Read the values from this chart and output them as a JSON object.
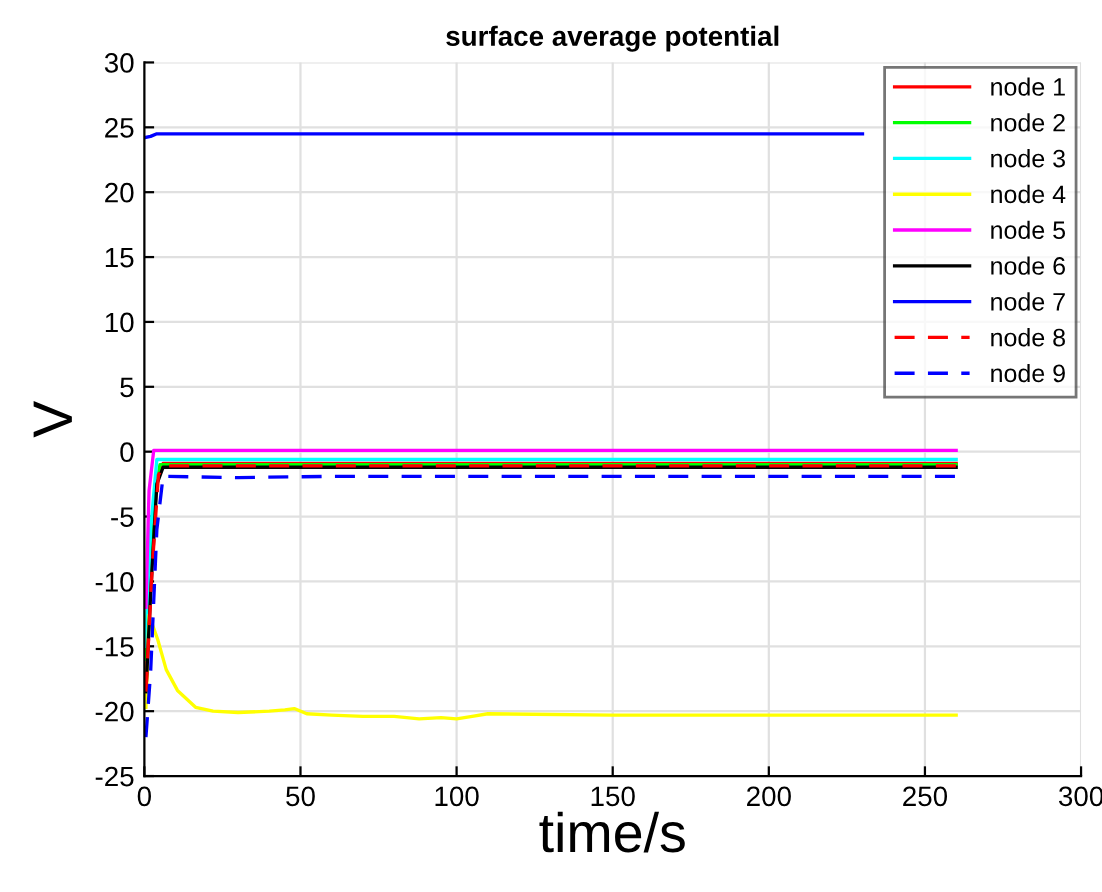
{
  "chart_data": {
    "type": "line",
    "title": "surface average potential",
    "xlabel": "time/s",
    "ylabel": "V",
    "xlim": [
      0,
      300
    ],
    "ylim": [
      -25,
      30
    ],
    "xticks": [
      0,
      50,
      100,
      150,
      200,
      250,
      300
    ],
    "yticks": [
      -25,
      -20,
      -15,
      -10,
      -5,
      0,
      5,
      10,
      15,
      20,
      25,
      30
    ],
    "grid": true,
    "legend": "top right",
    "series": [
      {
        "name": "node 1",
        "color": "#ff0000",
        "line_style": "solid",
        "x": [
          0.5,
          2,
          4,
          6,
          100,
          200,
          260
        ],
        "values": [
          -18,
          -10,
          -2,
          -0.9,
          -0.9,
          -0.9,
          -0.9
        ]
      },
      {
        "name": "node 2",
        "color": "#00ff00",
        "line_style": "solid",
        "x": [
          0.3,
          1,
          3,
          5,
          100,
          200,
          260
        ],
        "values": [
          -16,
          -12,
          -4,
          -1.0,
          -1.0,
          -1.0,
          -1.0
        ]
      },
      {
        "name": "node 3",
        "color": "#00ffff",
        "line_style": "solid",
        "x": [
          0.5,
          2,
          4,
          100,
          200,
          260
        ],
        "values": [
          -15,
          -6,
          -0.6,
          -0.6,
          -0.6,
          -0.6
        ]
      },
      {
        "name": "node 4",
        "color": "#ffff00",
        "line_style": "solid",
        "x": [
          0.5,
          1.5,
          4.3,
          7,
          10.6,
          16.4,
          22,
          30,
          40,
          45,
          48,
          52,
          60,
          70,
          80,
          88,
          95,
          100,
          105,
          110,
          150,
          200,
          260
        ],
        "values": [
          -19.7,
          -12.6,
          -14.5,
          -16.8,
          -18.4,
          -19.7,
          -20.0,
          -20.1,
          -20.0,
          -19.9,
          -19.8,
          -20.2,
          -20.3,
          -20.4,
          -20.4,
          -20.6,
          -20.5,
          -20.6,
          -20.4,
          -20.2,
          -20.3,
          -20.3,
          -20.3
        ]
      },
      {
        "name": "node 5",
        "color": "#ff00ff",
        "line_style": "solid",
        "x": [
          0.5,
          1.5,
          3,
          100,
          200,
          260
        ],
        "values": [
          -12,
          -3,
          0.1,
          0.1,
          0.1,
          0.1
        ]
      },
      {
        "name": "node 6",
        "color": "#000000",
        "line_style": "solid",
        "x": [
          0.5,
          2,
          4,
          6,
          100,
          200,
          260
        ],
        "values": [
          -18.5,
          -11,
          -2.5,
          -1.2,
          -1.2,
          -1.2,
          -1.2
        ]
      },
      {
        "name": "node 7",
        "color": "#0000ff",
        "line_style": "solid",
        "x": [
          0,
          2,
          4,
          50,
          100,
          150,
          200,
          230
        ],
        "values": [
          24.2,
          24.3,
          24.5,
          24.5,
          24.5,
          24.5,
          24.5,
          24.5
        ]
      },
      {
        "name": "node 8",
        "color": "#ff0000",
        "line_style": "dashed",
        "x": [
          0.5,
          2.5,
          4.5,
          6,
          100,
          200,
          260
        ],
        "values": [
          -18.5,
          -9,
          -1.8,
          -1.1,
          -1.1,
          -1.1,
          -1.1
        ]
      },
      {
        "name": "node 9",
        "color": "#0000ff",
        "line_style": "dashed",
        "x": [
          0.5,
          2,
          4,
          6,
          30,
          60,
          100,
          150,
          200,
          260
        ],
        "values": [
          -22,
          -17,
          -6,
          -1.9,
          -2.0,
          -1.9,
          -1.9,
          -1.9,
          -1.9,
          -1.9
        ]
      }
    ]
  }
}
